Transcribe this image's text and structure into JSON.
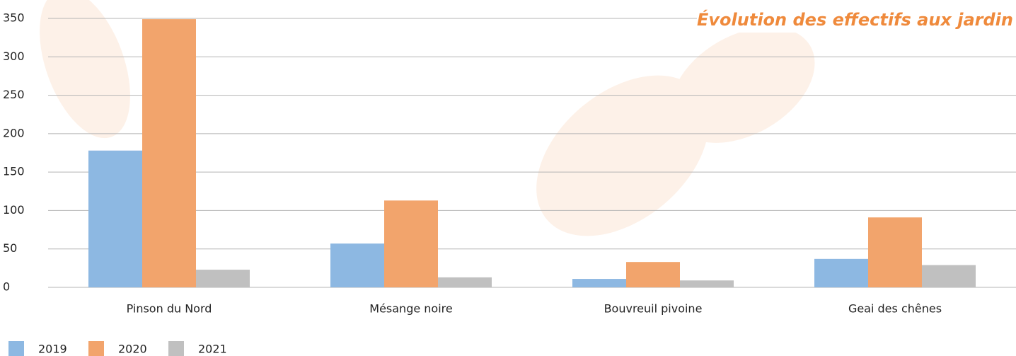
{
  "chart_data": {
    "type": "bar",
    "title": "Évolution des effectifs aux jardin",
    "categories": [
      "Pinson du Nord",
      "Mésange noire",
      "Bouvreuil pivoine",
      "Geai des chênes"
    ],
    "series": [
      {
        "name": "2019",
        "color": "#8db8e2",
        "values": [
          178,
          57,
          11,
          37
        ]
      },
      {
        "name": "2020",
        "color": "#f2a46c",
        "values": [
          349,
          113,
          33,
          91
        ]
      },
      {
        "name": "2021",
        "color": "#c0c0c0",
        "values": [
          23,
          13,
          9,
          29
        ]
      }
    ],
    "ylim": [
      0,
      350
    ],
    "yticks": [
      0,
      50,
      100,
      150,
      200,
      250,
      300,
      350
    ],
    "grid": true
  }
}
